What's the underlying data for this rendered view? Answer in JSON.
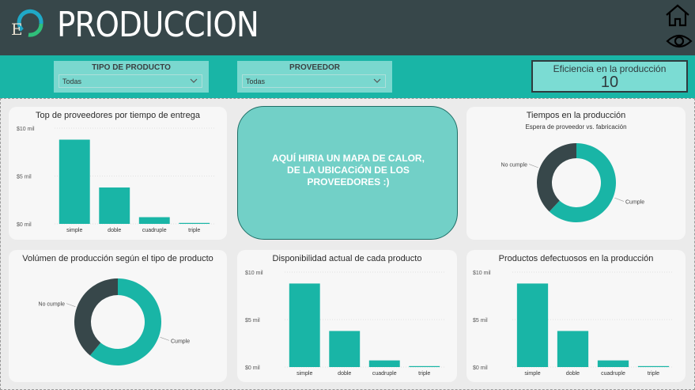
{
  "header": {
    "title": "PRODUCCION",
    "logo_letter": "E",
    "icons": [
      "home-icon",
      "eye-icon"
    ]
  },
  "filters": [
    {
      "label": "TIPO DE PRODUCTO",
      "value": "Todas"
    },
    {
      "label": "PROVEEDOR",
      "value": "Todas"
    }
  ],
  "kpi": {
    "label": "Eficiencia en la producción",
    "value": "10"
  },
  "map_placeholder": {
    "text_lines": [
      "AQUÍ HIRIA UN MAPA DE CALOR,",
      "DE LA UBICACiÓN DE LOS",
      "PROVEEDORES :)"
    ]
  },
  "colors": {
    "header": "#37474a",
    "teal": "#19b5a6",
    "dark": "#37474a",
    "card": "#f7f7f7"
  },
  "chart_data": [
    {
      "type": "bar",
      "title": "Top de proveedores por tiempo de entrega",
      "categories": [
        "simple",
        "doble",
        "cuadruple",
        "triple"
      ],
      "values": [
        8.8,
        3.8,
        0.7,
        0.1
      ],
      "yticks": [
        "$0 mil",
        "$5 mil",
        "$10 mil"
      ],
      "ylim": [
        0,
        10
      ]
    },
    {
      "type": "pie",
      "title": "Tiempos en la producción",
      "subtitle": "Espera de proveedor vs. fabricación",
      "labels": [
        "Cumple",
        "No cumple"
      ],
      "values": [
        62,
        38
      ]
    },
    {
      "type": "pie",
      "title": "Volúmen de producción según el tipo de producto",
      "labels": [
        "Cumple",
        "No cumple"
      ],
      "values": [
        61,
        39
      ]
    },
    {
      "type": "bar",
      "title": "Disponibilidad actual de cada producto",
      "categories": [
        "simple",
        "doble",
        "cuadruple",
        "triple"
      ],
      "values": [
        8.8,
        3.8,
        0.7,
        0.1
      ],
      "yticks": [
        "$0 mil",
        "$5 mil",
        "$10 mil"
      ],
      "ylim": [
        0,
        10
      ]
    },
    {
      "type": "bar",
      "title": "Productos defectuosos en la producción",
      "categories": [
        "simple",
        "doble",
        "cuadruple",
        "triple"
      ],
      "values": [
        8.8,
        3.8,
        0.7,
        0.1
      ],
      "yticks": [
        "$0 mil",
        "$5 mil",
        "$10 mil"
      ],
      "ylim": [
        0,
        10
      ]
    }
  ]
}
